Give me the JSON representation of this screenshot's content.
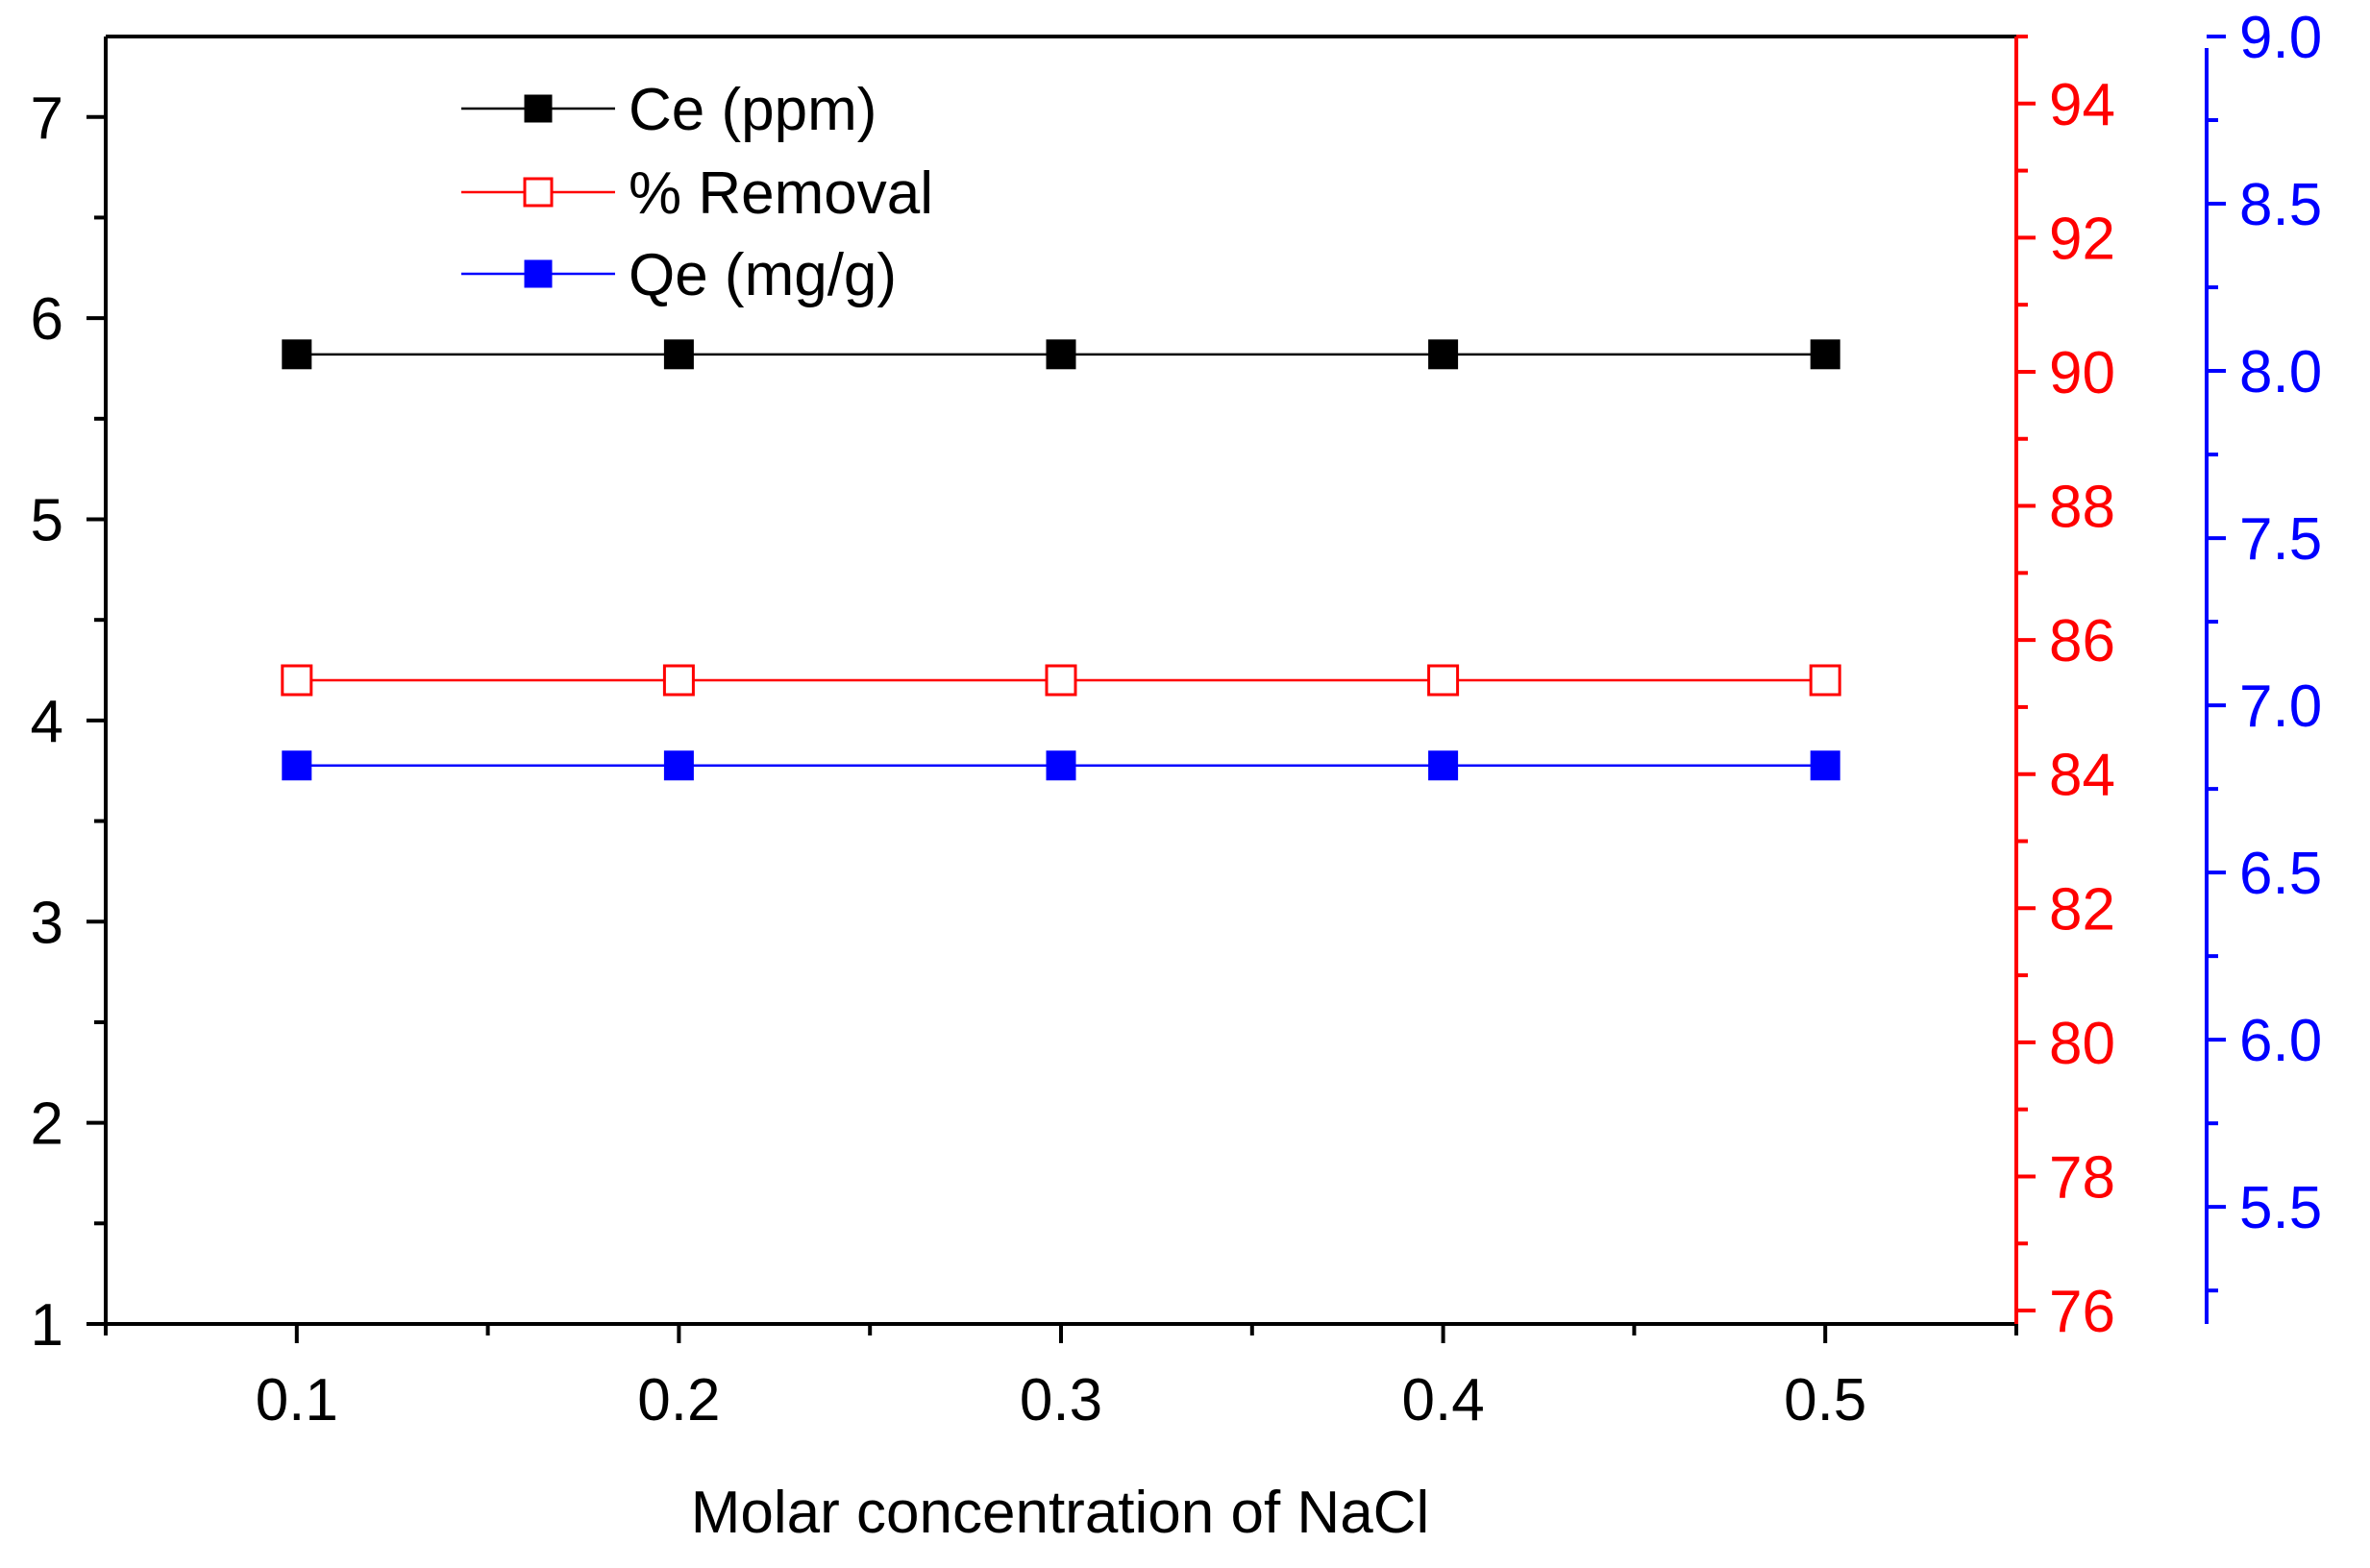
{
  "chart_data": {
    "type": "line",
    "title": "",
    "xlabel": "Molar concentration of NaCl",
    "ylabel": "",
    "x": [
      0.1,
      0.2,
      0.3,
      0.4,
      0.5
    ],
    "x_ticks": [
      "0.1",
      "0.2",
      "0.3",
      "0.4",
      "0.5"
    ],
    "xlim": [
      0.05,
      0.55
    ],
    "grid": false,
    "legend_position": "top-left",
    "axes": {
      "left": {
        "color": "#000000",
        "ylim": [
          1,
          7.4
        ],
        "ticks": [
          "1",
          "2",
          "3",
          "4",
          "5",
          "6",
          "7"
        ]
      },
      "right_red": {
        "color": "#ff0000",
        "ylim": [
          75.8,
          95
        ],
        "ticks": [
          "76",
          "78",
          "80",
          "82",
          "84",
          "86",
          "88",
          "90",
          "92",
          "94"
        ]
      },
      "right_blue": {
        "color": "#0000ff",
        "ylim": [
          5.15,
          9.0
        ],
        "ticks": [
          "5.5",
          "6.0",
          "6.5",
          "7.0",
          "7.5",
          "8.0",
          "8.5",
          "9.0"
        ]
      }
    },
    "series": [
      {
        "name": "Ce (ppm)",
        "axis": "left",
        "color": "#000000",
        "marker": "filled-square",
        "values": [
          5.82,
          5.82,
          5.82,
          5.82,
          5.82
        ]
      },
      {
        "name": "% Removal",
        "axis": "right_red",
        "color": "#ff0000",
        "marker": "open-square",
        "values": [
          85.4,
          85.4,
          85.4,
          85.4,
          85.4
        ]
      },
      {
        "name": "Qe (mg/g)",
        "axis": "right_blue",
        "color": "#0000ff",
        "marker": "filled-square",
        "values": [
          6.82,
          6.82,
          6.82,
          6.82,
          6.82
        ]
      }
    ]
  }
}
